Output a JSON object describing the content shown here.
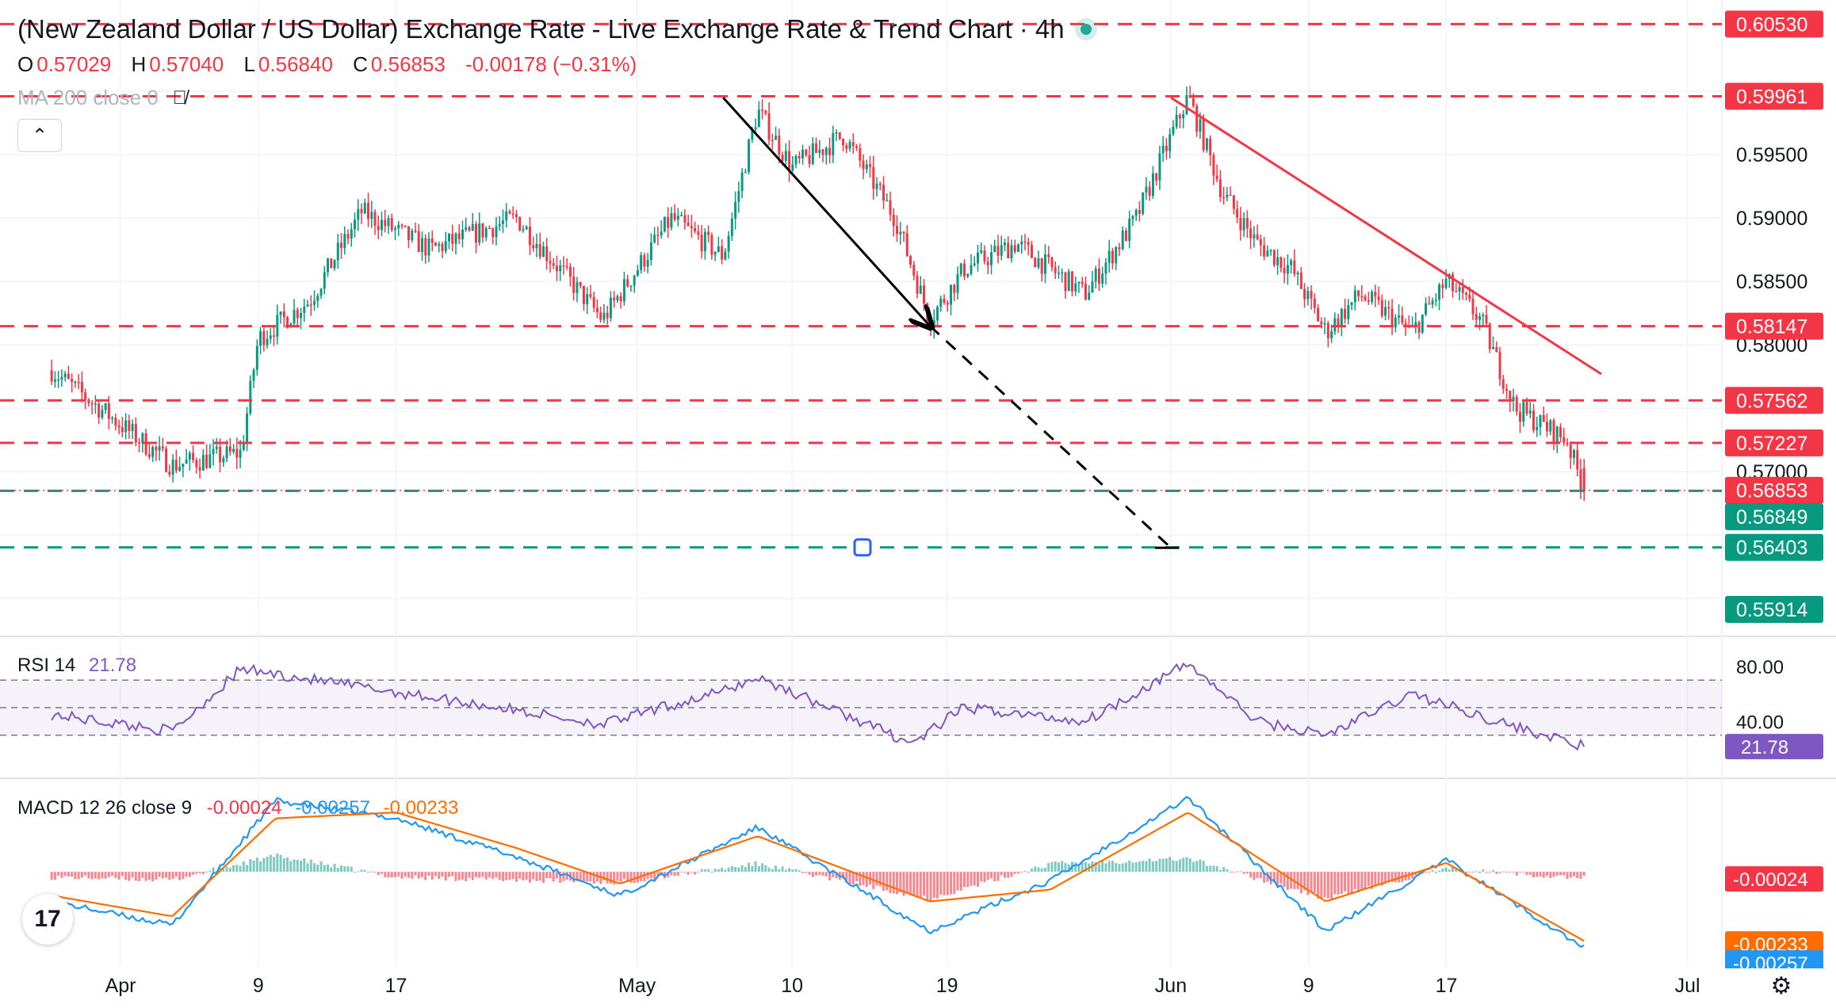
{
  "header": {
    "title": "(New Zealand Dollar / US Dollar) Exchange Rate - Live Exchange Rate & Trend Chart · 4h",
    "ohlc": [
      {
        "key": "O",
        "value": "0.57029"
      },
      {
        "key": "H",
        "value": "0.57040"
      },
      {
        "key": "L",
        "value": "0.56840"
      },
      {
        "key": "C",
        "value": "0.56853"
      }
    ],
    "change": "-0.00178 (−0.31%)",
    "ma_label": "MA 200 close 0",
    "collapse_icon": "chevron-up-icon",
    "visibility_icon": "eye-slash-icon"
  },
  "colors": {
    "up": "#089981",
    "down": "#f23645",
    "rsi": "#7e57c2",
    "macd": "#2196f3",
    "signal": "#ff6d00",
    "trendline": "#f23645",
    "arrow": "#000000",
    "support": "#089981"
  },
  "chart_data": [
    {
      "type": "candlestick",
      "symbol": "NZDUSD",
      "interval": "4h",
      "y_ticks": [
        "0.57000",
        "0.58000",
        "0.58500",
        "0.59000",
        "0.59500"
      ],
      "ylim": [
        0.5572,
        0.6072
      ],
      "x_ticks": [
        "Apr",
        "9",
        "17",
        "May",
        "10",
        "19",
        "Jun",
        "9",
        "17",
        "Jul"
      ],
      "candles": 456,
      "key_points": [
        {
          "date": "2024-03-28",
          "price": 0.578
        },
        {
          "date": "2024-04-04",
          "price": 0.5705
        },
        {
          "date": "2024-04-08",
          "price": 0.5715
        },
        {
          "date": "2024-04-09",
          "price": 0.5805
        },
        {
          "date": "2024-04-12",
          "price": 0.5835
        },
        {
          "date": "2024-04-15",
          "price": 0.5905
        },
        {
          "date": "2024-04-19",
          "price": 0.5875
        },
        {
          "date": "2024-04-24",
          "price": 0.59
        },
        {
          "date": "2024-04-29",
          "price": 0.582
        },
        {
          "date": "2024-05-03",
          "price": 0.59
        },
        {
          "date": "2024-05-06",
          "price": 0.587
        },
        {
          "date": "2024-05-08",
          "price": 0.5985
        },
        {
          "date": "2024-05-10",
          "price": 0.594
        },
        {
          "date": "2024-05-13",
          "price": 0.5965
        },
        {
          "date": "2024-05-16",
          "price": 0.59
        },
        {
          "date": "2024-05-18",
          "price": 0.582
        },
        {
          "date": "2024-05-20",
          "price": 0.586
        },
        {
          "date": "2024-05-23",
          "price": 0.588
        },
        {
          "date": "2024-05-27",
          "price": 0.584
        },
        {
          "date": "2024-05-30",
          "price": 0.59
        },
        {
          "date": "2024-06-02",
          "price": 0.5996
        },
        {
          "date": "2024-06-04",
          "price": 0.592
        },
        {
          "date": "2024-06-06",
          "price": 0.588
        },
        {
          "date": "2024-06-08",
          "price": 0.586
        },
        {
          "date": "2024-06-10",
          "price": 0.581
        },
        {
          "date": "2024-06-12",
          "price": 0.584
        },
        {
          "date": "2024-06-15",
          "price": 0.581
        },
        {
          "date": "2024-06-17",
          "price": 0.585
        },
        {
          "date": "2024-06-19",
          "price": 0.582
        },
        {
          "date": "2024-06-21",
          "price": 0.575
        },
        {
          "date": "2024-06-24",
          "price": 0.5725
        },
        {
          "date": "2024-06-25",
          "price": 0.5685
        }
      ],
      "horizontal_levels": [
        {
          "price": 0.6053,
          "label": "0.60530",
          "style": "dashed",
          "color": "#f23645"
        },
        {
          "price": 0.59961,
          "label": "0.59961",
          "style": "dashed",
          "color": "#f23645"
        },
        {
          "price": 0.58147,
          "label": "0.58147",
          "style": "dashed",
          "color": "#f23645"
        },
        {
          "price": 0.57562,
          "label": "0.57562",
          "style": "dashed",
          "color": "#f23645"
        },
        {
          "price": 0.57227,
          "label": "0.57227",
          "style": "dashed",
          "color": "#f23645"
        },
        {
          "price": 0.56849,
          "label": "0.56849",
          "style": "dashed",
          "color": "#089981"
        },
        {
          "price": 0.56403,
          "label": "0.56403",
          "style": "dashed",
          "color": "#089981"
        }
      ],
      "price_labels": {
        "current": {
          "price": 0.56853,
          "label": "0.56853"
        },
        "support_tag": {
          "price": 0.56849,
          "label": "0.56849"
        },
        "lower": {
          "price": 0.55914,
          "label": "0.55914"
        }
      },
      "drawings": [
        {
          "type": "arrow",
          "from": {
            "date": "2024-05-06",
            "price": 0.5995
          },
          "to": {
            "date": "2024-05-18",
            "price": 0.5815
          }
        },
        {
          "type": "dashed-line",
          "from": {
            "date": "2024-05-18",
            "price": 0.5815
          },
          "to": {
            "date": "2024-06-01",
            "price": 0.564
          }
        },
        {
          "type": "trendline",
          "from": {
            "date": "2024-06-01",
            "price": 0.5995
          },
          "to": {
            "date": "2024-06-26",
            "price": 0.5777
          }
        }
      ]
    },
    {
      "type": "line",
      "name": "RSI 14",
      "value_label": "21.78",
      "levels": [
        70,
        50,
        30
      ],
      "y_ticks": [
        "80.00",
        "40.00"
      ],
      "key_points": [
        {
          "date": "2024-03-28",
          "value": 45
        },
        {
          "date": "2024-04-04",
          "value": 33
        },
        {
          "date": "2024-04-08",
          "value": 78
        },
        {
          "date": "2024-04-15",
          "value": 65
        },
        {
          "date": "2024-04-22",
          "value": 52
        },
        {
          "date": "2024-04-29",
          "value": 38
        },
        {
          "date": "2024-05-06",
          "value": 62
        },
        {
          "date": "2024-05-08",
          "value": 72
        },
        {
          "date": "2024-05-17",
          "value": 24
        },
        {
          "date": "2024-05-20",
          "value": 50
        },
        {
          "date": "2024-05-27",
          "value": 40
        },
        {
          "date": "2024-06-02",
          "value": 82
        },
        {
          "date": "2024-06-06",
          "value": 40
        },
        {
          "date": "2024-06-10",
          "value": 30
        },
        {
          "date": "2024-06-15",
          "value": 60
        },
        {
          "date": "2024-06-21",
          "value": 36
        },
        {
          "date": "2024-06-25",
          "value": 21.78
        }
      ]
    },
    {
      "type": "macd",
      "name": "MACD 12 26 close 9",
      "histogram_label": "-0.00024",
      "macd_label": "-0.00257",
      "signal_label": "-0.00233",
      "key_points": [
        {
          "date": "2024-03-28",
          "macd": -0.001,
          "signal": -0.0008
        },
        {
          "date": "2024-04-04",
          "macd": -0.0018,
          "signal": -0.0015
        },
        {
          "date": "2024-04-10",
          "macd": 0.0024,
          "signal": 0.0018
        },
        {
          "date": "2024-04-17",
          "macd": 0.0018,
          "signal": 0.002
        },
        {
          "date": "2024-04-24",
          "macd": 0.0005,
          "signal": 0.0008
        },
        {
          "date": "2024-04-30",
          "macd": -0.0008,
          "signal": -0.0004
        },
        {
          "date": "2024-05-08",
          "macd": 0.0015,
          "signal": 0.0012
        },
        {
          "date": "2024-05-18",
          "macd": -0.002,
          "signal": -0.001
        },
        {
          "date": "2024-05-25",
          "macd": -0.0003,
          "signal": -0.0006
        },
        {
          "date": "2024-06-02",
          "macd": 0.0025,
          "signal": 0.002
        },
        {
          "date": "2024-06-10",
          "macd": -0.002,
          "signal": -0.001
        },
        {
          "date": "2024-06-17",
          "macd": 0.0004,
          "signal": 0.0003
        },
        {
          "date": "2024-06-25",
          "macd": -0.00257,
          "signal": -0.00233
        }
      ]
    }
  ]
}
